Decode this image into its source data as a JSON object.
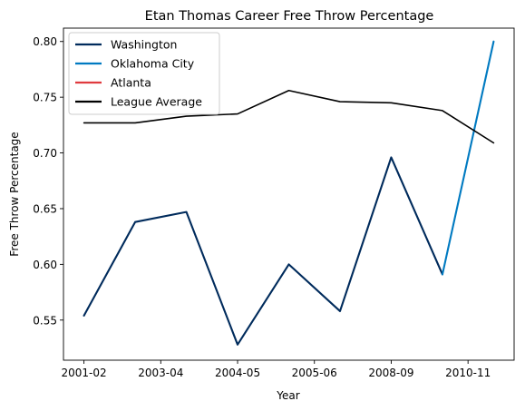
{
  "chart_data": {
    "type": "line",
    "title": "Etan Thomas Career Free Throw Percentage",
    "xlabel": "Year",
    "ylabel": "Free Throw Percentage",
    "x": [
      0,
      1,
      2,
      3,
      4,
      5,
      6,
      7,
      8
    ],
    "xlim": [
      -0.4,
      8.4
    ],
    "xticks": [
      {
        "x": 0,
        "label": "2001-02"
      },
      {
        "x": 1.5,
        "label": "2003-04"
      },
      {
        "x": 3,
        "label": "2004-05"
      },
      {
        "x": 4.5,
        "label": "2005-06"
      },
      {
        "x": 6,
        "label": "2008-09"
      },
      {
        "x": 7.5,
        "label": "2010-11"
      }
    ],
    "ylim": [
      0.514,
      0.812
    ],
    "yticks": [
      "0.55",
      "0.60",
      "0.65",
      "0.70",
      "0.75",
      "0.80"
    ],
    "grid": false,
    "legend_position": "top-left",
    "series": [
      {
        "name": "Washington",
        "color": "#002B5C",
        "points": [
          [
            0,
            0.554
          ],
          [
            1,
            0.638
          ],
          [
            2,
            0.647
          ],
          [
            3,
            0.528
          ],
          [
            4,
            0.6
          ],
          [
            5,
            0.558
          ],
          [
            6,
            0.696
          ],
          [
            7,
            0.591
          ]
        ]
      },
      {
        "name": "Oklahoma City",
        "color": "#007AC1",
        "points": [
          [
            7,
            0.591
          ],
          [
            8,
            0.8
          ]
        ]
      },
      {
        "name": "Atlanta",
        "color": "#E03A3E",
        "points": []
      },
      {
        "name": "League Average",
        "color": "#000000",
        "points": [
          [
            0,
            0.727
          ],
          [
            1,
            0.727
          ],
          [
            2,
            0.733
          ],
          [
            3,
            0.735
          ],
          [
            4,
            0.756
          ],
          [
            5,
            0.746
          ],
          [
            6,
            0.745
          ],
          [
            7,
            0.738
          ],
          [
            8,
            0.709
          ]
        ]
      }
    ]
  }
}
